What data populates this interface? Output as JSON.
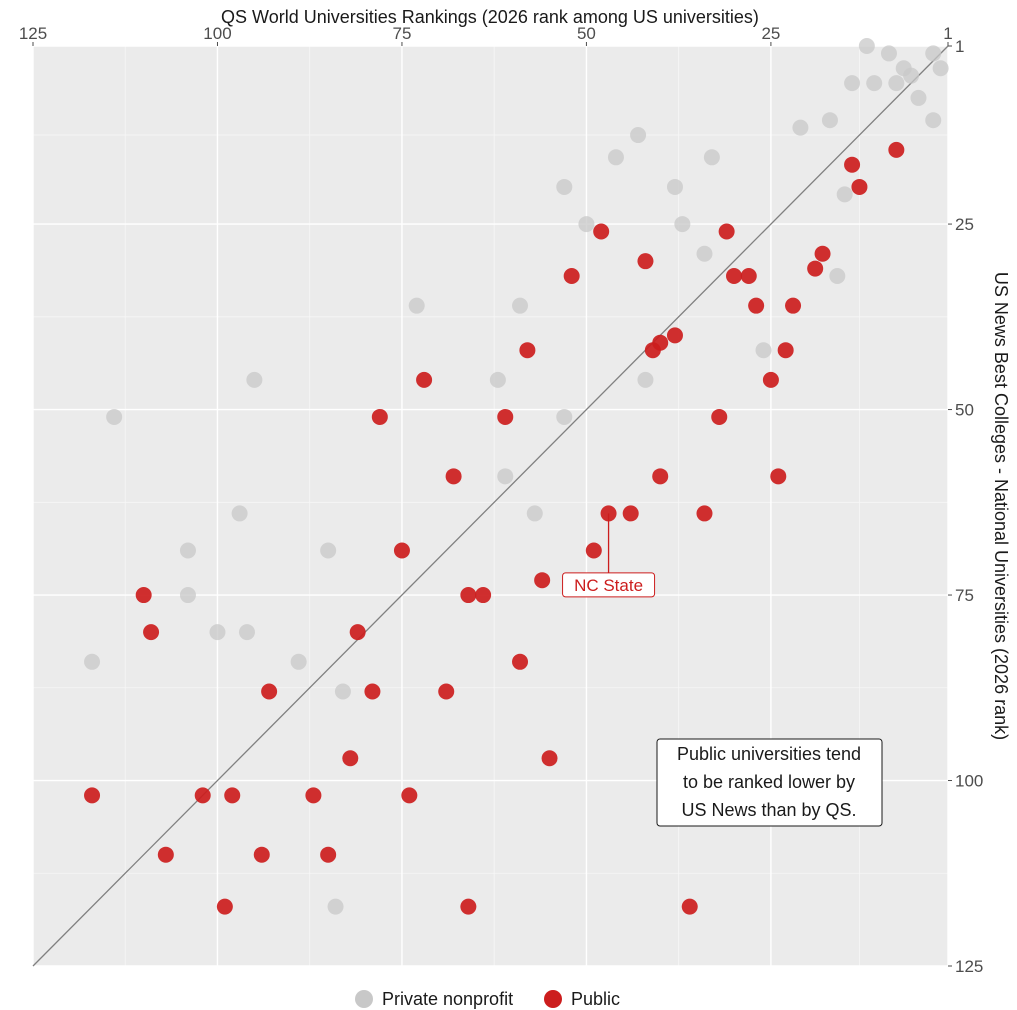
{
  "chart_data": {
    "type": "scatter",
    "title": "",
    "xlabel": "QS World Universities Rankings (2026 rank among US universities)",
    "ylabel": "US News Best Colleges - National Universities (2026 rank)",
    "xlim": [
      1,
      125
    ],
    "ylim": [
      1,
      125
    ],
    "x_reversed": true,
    "y_reversed": true,
    "x_axis_position": "top",
    "y_axis_position": "right",
    "x_ticks": [
      125,
      100,
      75,
      50,
      25,
      1
    ],
    "y_ticks": [
      1,
      25,
      50,
      75,
      100,
      125
    ],
    "grid": true,
    "reference_line": "y = x",
    "legend_position": "bottom",
    "colors": {
      "private": "#c8c8c8",
      "public": "#cc1d1d",
      "panel": "#ebebeb",
      "grid": "#ffffff",
      "reference_line": "#808080",
      "nc_state": "#cc1d1d"
    },
    "series": [
      {
        "name": "Private nonprofit",
        "points": [
          [
            12,
            1
          ],
          [
            9,
            2
          ],
          [
            3,
            2
          ],
          [
            2,
            4
          ],
          [
            7,
            4
          ],
          [
            6,
            5
          ],
          [
            8,
            6
          ],
          [
            14,
            6
          ],
          [
            11,
            6
          ],
          [
            5,
            8
          ],
          [
            3,
            11
          ],
          [
            21,
            12
          ],
          [
            17,
            11
          ],
          [
            43,
            13
          ],
          [
            33,
            16
          ],
          [
            46,
            16
          ],
          [
            53,
            20
          ],
          [
            38,
            20
          ],
          [
            15,
            21
          ],
          [
            50,
            25
          ],
          [
            37,
            25
          ],
          [
            34,
            29
          ],
          [
            16,
            32
          ],
          [
            73,
            36
          ],
          [
            59,
            36
          ],
          [
            26,
            42
          ],
          [
            95,
            46
          ],
          [
            62,
            46
          ],
          [
            42,
            46
          ],
          [
            114,
            51
          ],
          [
            53,
            51
          ],
          [
            61,
            59
          ],
          [
            97,
            64
          ],
          [
            57,
            64
          ],
          [
            104,
            69
          ],
          [
            85,
            69
          ],
          [
            104,
            75
          ],
          [
            100,
            80
          ],
          [
            96,
            80
          ],
          [
            117,
            84
          ],
          [
            89,
            84
          ],
          [
            83,
            88
          ],
          [
            84,
            117
          ]
        ]
      },
      {
        "name": "Public",
        "points": [
          [
            8,
            15
          ],
          [
            14,
            17
          ],
          [
            13,
            20
          ],
          [
            48,
            26
          ],
          [
            31,
            26
          ],
          [
            42,
            30
          ],
          [
            18,
            29
          ],
          [
            19,
            31
          ],
          [
            52,
            32
          ],
          [
            30,
            32
          ],
          [
            28,
            32
          ],
          [
            27,
            36
          ],
          [
            22,
            36
          ],
          [
            38,
            40
          ],
          [
            40,
            41
          ],
          [
            41,
            42
          ],
          [
            58,
            42
          ],
          [
            23,
            42
          ],
          [
            25,
            46
          ],
          [
            72,
            46
          ],
          [
            78,
            51
          ],
          [
            61,
            51
          ],
          [
            32,
            51
          ],
          [
            68,
            59
          ],
          [
            40,
            59
          ],
          [
            24,
            59
          ],
          [
            47,
            64
          ],
          [
            44,
            64
          ],
          [
            34,
            64
          ],
          [
            49,
            69
          ],
          [
            75,
            69
          ],
          [
            56,
            73
          ],
          [
            66,
            75
          ],
          [
            64,
            75
          ],
          [
            110,
            75
          ],
          [
            109,
            80
          ],
          [
            81,
            80
          ],
          [
            59,
            84
          ],
          [
            93,
            88
          ],
          [
            79,
            88
          ],
          [
            69,
            88
          ],
          [
            82,
            97
          ],
          [
            55,
            97
          ],
          [
            117,
            102
          ],
          [
            102,
            102
          ],
          [
            98,
            102
          ],
          [
            87,
            102
          ],
          [
            74,
            102
          ],
          [
            107,
            110
          ],
          [
            94,
            110
          ],
          [
            85,
            110
          ],
          [
            99,
            117
          ],
          [
            66,
            117
          ],
          [
            36,
            117
          ]
        ]
      }
    ],
    "annotations": [
      {
        "text_lines": [
          "Public universities tend",
          "to be ranked lower by",
          "US News than by QS."
        ],
        "x": 24,
        "y": 101
      }
    ],
    "highlight": {
      "label": "NC State",
      "x": 47,
      "y": 64,
      "label_y": 73.5
    }
  }
}
